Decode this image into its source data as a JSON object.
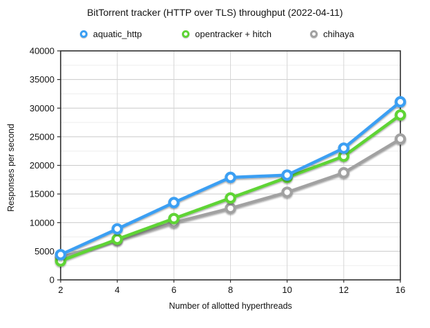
{
  "chart_data": {
    "type": "line",
    "title": "BitTorrent tracker (HTTP over TLS) throughput (2022-04-11)",
    "xlabel": "Number of allotted hyperthreads",
    "ylabel": "Responses per second",
    "categories": [
      2,
      4,
      6,
      8,
      10,
      12,
      16
    ],
    "series": [
      {
        "name": "aquatic_http",
        "color": "#3B9FF3",
        "values": [
          4400,
          8900,
          13500,
          17900,
          18300,
          23000,
          31100
        ]
      },
      {
        "name": "opentracker + hitch",
        "color": "#5FD435",
        "values": [
          3300,
          7100,
          10700,
          14300,
          17900,
          21600,
          28800
        ]
      },
      {
        "name": "chihaya",
        "color": "#A1A1A1",
        "values": [
          3900,
          6900,
          10000,
          12500,
          15300,
          18700,
          24600
        ]
      }
    ],
    "ylim": [
      0,
      40000
    ],
    "y_major_step": 5000,
    "y_minor_step": 2500,
    "y_tick_labels": [
      "0",
      "5000",
      "10000",
      "15000",
      "20000",
      "25000",
      "30000",
      "35000",
      "40000"
    ],
    "grid": true,
    "legend_position": "top",
    "marker_style": "open-circle",
    "background": "#ffffff"
  }
}
